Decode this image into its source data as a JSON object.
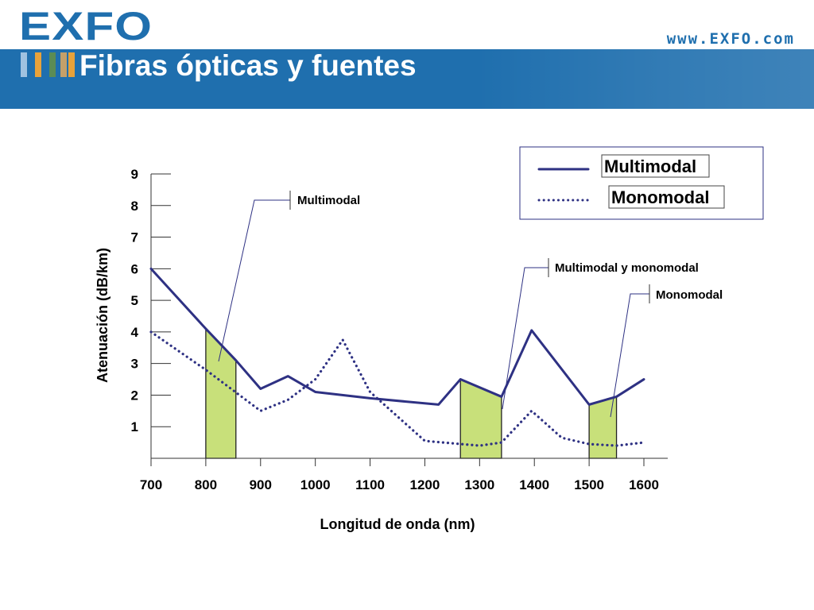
{
  "header": {
    "logo": "EXFO",
    "website": "www.EXFO.com",
    "title": "Fibras ópticas y fuentes",
    "stripe_colors": [
      "#9fc2e0",
      "#e8a23a",
      "#5b8c55",
      "#c4a06a",
      "#e8a23a"
    ]
  },
  "chart_data": {
    "type": "line",
    "xlabel": "Longitud de onda (nm)",
    "ylabel": "Atenuación (dB/km)",
    "xlim": [
      700,
      1600
    ],
    "ylim": [
      0,
      9
    ],
    "x_ticks": [
      "700",
      "800",
      "900",
      "1000",
      "1100",
      "1200",
      "1300",
      "1400",
      "1500",
      "1600"
    ],
    "y_ticks": [
      "1",
      "2",
      "3",
      "4",
      "5",
      "6",
      "7",
      "8",
      "9"
    ],
    "grid": false,
    "series": [
      {
        "name": "Multimodal",
        "style": "solid",
        "color": "#2e3183",
        "points": [
          [
            700,
            6.0
          ],
          [
            800,
            4.1
          ],
          [
            855,
            3.1
          ],
          [
            900,
            2.2
          ],
          [
            950,
            2.6
          ],
          [
            1000,
            2.1
          ],
          [
            1100,
            1.9
          ],
          [
            1225,
            1.7
          ],
          [
            1265,
            2.5
          ],
          [
            1340,
            1.95
          ],
          [
            1395,
            4.05
          ],
          [
            1500,
            1.7
          ],
          [
            1550,
            1.95
          ],
          [
            1600,
            2.5
          ]
        ]
      },
      {
        "name": "Monomodal",
        "style": "dotted",
        "color": "#2e3183",
        "points": [
          [
            700,
            4.0
          ],
          [
            800,
            2.8
          ],
          [
            900,
            1.5
          ],
          [
            950,
            1.85
          ],
          [
            1000,
            2.5
          ],
          [
            1050,
            3.75
          ],
          [
            1100,
            2.1
          ],
          [
            1200,
            0.55
          ],
          [
            1300,
            0.4
          ],
          [
            1340,
            0.5
          ],
          [
            1395,
            1.5
          ],
          [
            1450,
            0.65
          ],
          [
            1500,
            0.45
          ],
          [
            1550,
            0.4
          ],
          [
            1600,
            0.5
          ]
        ]
      }
    ],
    "windows": [
      {
        "x0": 800,
        "x1": 855,
        "label": "Multimodal"
      },
      {
        "x0": 1265,
        "x1": 1340,
        "label": "Multimodal y monomodal"
      },
      {
        "x0": 1500,
        "x1": 1550,
        "label": "Monomodal"
      }
    ],
    "window_color": "#c8e07a",
    "legend": {
      "position": "top-right",
      "items": [
        "Multimodal",
        "Monomodal"
      ]
    }
  }
}
